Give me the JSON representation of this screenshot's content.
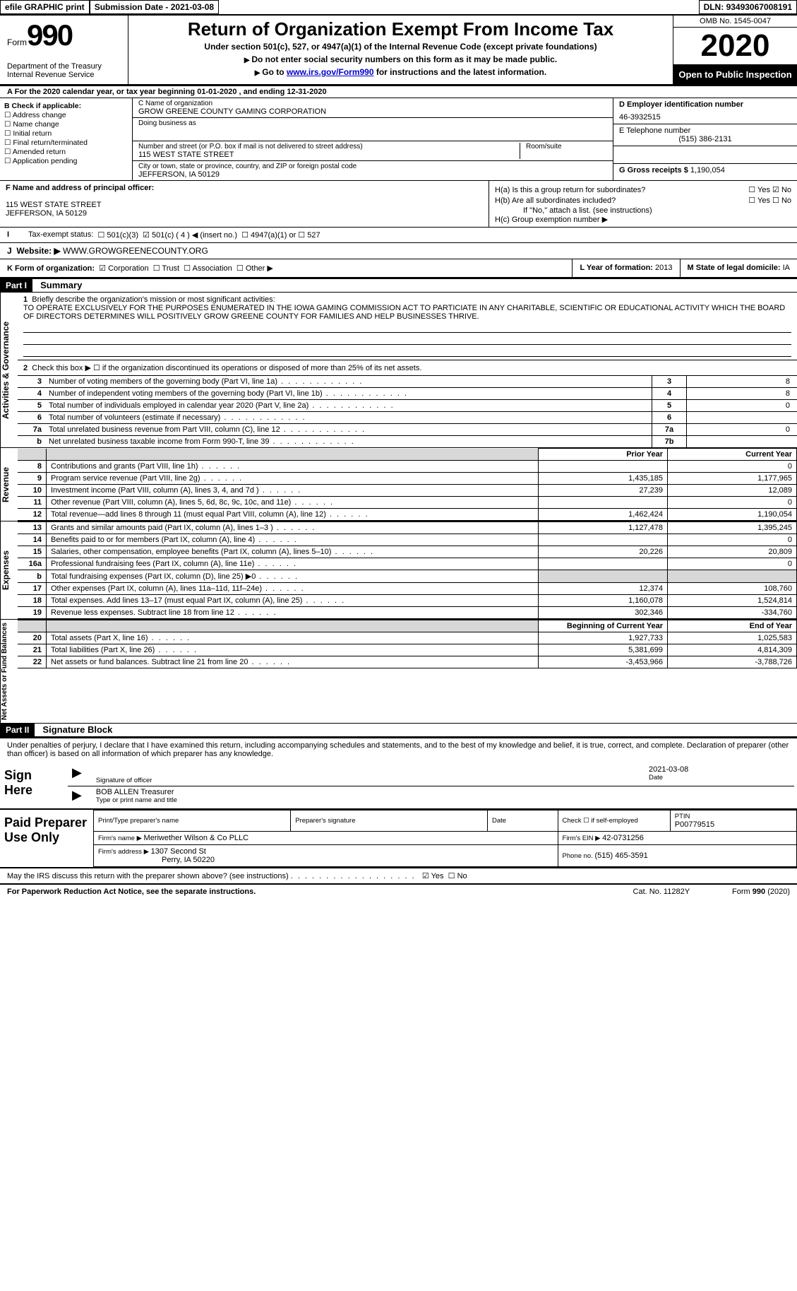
{
  "top": {
    "efile": "efile GRAPHIC print",
    "subdate_lbl": "Submission Date - ",
    "subdate": "2021-03-08",
    "dln_lbl": "DLN: ",
    "dln": "93493067008191"
  },
  "header": {
    "form_word": "Form",
    "form_num": "990",
    "dept1": "Department of the Treasury",
    "dept2": "Internal Revenue Service",
    "title": "Return of Organization Exempt From Income Tax",
    "sub": "Under section 501(c), 527, or 4947(a)(1) of the Internal Revenue Code (except private foundations)",
    "instr1": "Do not enter social security numbers on this form as it may be made public.",
    "instr2a": "Go to ",
    "instr2_link": "www.irs.gov/Form990",
    "instr2b": " for instructions and the latest information.",
    "omb": "OMB No. 1545-0047",
    "year": "2020",
    "inspect": "Open to Public Inspection"
  },
  "line_a": "For the 2020 calendar year, or tax year beginning 01-01-2020   , and ending 12-31-2020",
  "section_b": {
    "heading": "B Check if applicable:",
    "items": [
      "Address change",
      "Name change",
      "Initial return",
      "Final return/terminated",
      "Amended return",
      "Application pending"
    ]
  },
  "section_c": {
    "name_lbl": "C Name of organization",
    "name": "GROW GREENE COUNTY GAMING CORPORATION",
    "dba_lbl": "Doing business as",
    "dba": "",
    "addr_lbl": "Number and street (or P.O. box if mail is not delivered to street address)",
    "room_lbl": "Room/suite",
    "addr": "115 WEST STATE STREET",
    "city_lbl": "City or town, state or province, country, and ZIP or foreign postal code",
    "city": "JEFFERSON, IA  50129"
  },
  "section_right": {
    "d_lbl": "D Employer identification number",
    "d_val": "46-3932515",
    "e_lbl": "E Telephone number",
    "e_val": "(515) 386-2131",
    "g_lbl": "G Gross receipts $ ",
    "g_val": "1,190,054"
  },
  "section_f": {
    "lbl": "F Name and address of principal officer:",
    "addr1": "115 WEST STATE STREET",
    "addr2": "JEFFERSON, IA  50129"
  },
  "section_h": {
    "a_lbl": "H(a)  Is this a group return for subordinates?",
    "b_lbl": "H(b)  Are all subordinates included?",
    "b_note": "If \"No,\" attach a list. (see instructions)",
    "c_lbl": "H(c)  Group exemption number ▶",
    "yes": "Yes",
    "no": "No"
  },
  "line_i": {
    "lbl": "Tax-exempt status:",
    "o1": "501(c)(3)",
    "o2": "501(c) ( 4 ) ◀ (insert no.)",
    "o3": "4947(a)(1) or",
    "o4": "527"
  },
  "line_j": {
    "lbl": "Website: ▶ ",
    "val": "WWW.GROWGREENECOUNTY.ORG"
  },
  "line_k": {
    "lbl": "K Form of organization:",
    "o1": "Corporation",
    "o2": "Trust",
    "o3": "Association",
    "o4": "Other ▶"
  },
  "line_l": {
    "lbl": "L Year of formation: ",
    "val": "2013"
  },
  "line_m": {
    "lbl": "M State of legal domicile: ",
    "val": "IA"
  },
  "part1": {
    "hdr": "Part I",
    "title": "Summary"
  },
  "mission": {
    "q1_ln": "1",
    "q1": "Briefly describe the organization's mission or most significant activities:",
    "q1_text": "TO OPERATE EXCLUSIVELY FOR THE PURPOSES ENUMERATED IN THE IOWA GAMING COMMISSION ACT TO PARTICIATE IN ANY CHARITABLE, SCIENTIFIC OR EDUCATIONAL ACTIVITY WHICH THE BOARD OF DIRECTORS DETERMINES WILL POSITIVELY GROW GREENE COUNTY FOR FAMILIES AND HELP BUSINESSES THRIVE.",
    "q2_ln": "2",
    "q2": "Check this box ▶ ☐  if the organization discontinued its operations or disposed of more than 25% of its net assets."
  },
  "gov_rows": [
    {
      "ln": "3",
      "desc": "Number of voting members of the governing body (Part VI, line 1a)",
      "box": "3",
      "val": "8"
    },
    {
      "ln": "4",
      "desc": "Number of independent voting members of the governing body (Part VI, line 1b)",
      "box": "4",
      "val": "8"
    },
    {
      "ln": "5",
      "desc": "Total number of individuals employed in calendar year 2020 (Part V, line 2a)",
      "box": "5",
      "val": "0"
    },
    {
      "ln": "6",
      "desc": "Total number of volunteers (estimate if necessary)",
      "box": "6",
      "val": ""
    },
    {
      "ln": "7a",
      "desc": "Total unrelated business revenue from Part VIII, column (C), line 12",
      "box": "7a",
      "val": "0"
    },
    {
      "ln": "b",
      "desc": "Net unrelated business taxable income from Form 990-T, line 39",
      "box": "7b",
      "val": ""
    }
  ],
  "fin_headers": {
    "left": "",
    "prior": "Prior Year",
    "current": "Current Year"
  },
  "revenue_rows": [
    {
      "ln": "8",
      "desc": "Contributions and grants (Part VIII, line 1h)",
      "prior": "",
      "curr": "0"
    },
    {
      "ln": "9",
      "desc": "Program service revenue (Part VIII, line 2g)",
      "prior": "1,435,185",
      "curr": "1,177,965"
    },
    {
      "ln": "10",
      "desc": "Investment income (Part VIII, column (A), lines 3, 4, and 7d )",
      "prior": "27,239",
      "curr": "12,089"
    },
    {
      "ln": "11",
      "desc": "Other revenue (Part VIII, column (A), lines 5, 6d, 8c, 9c, 10c, and 11e)",
      "prior": "",
      "curr": "0"
    },
    {
      "ln": "12",
      "desc": "Total revenue—add lines 8 through 11 (must equal Part VIII, column (A), line 12)",
      "prior": "1,462,424",
      "curr": "1,190,054"
    }
  ],
  "expense_rows": [
    {
      "ln": "13",
      "desc": "Grants and similar amounts paid (Part IX, column (A), lines 1–3 )",
      "prior": "1,127,478",
      "curr": "1,395,245"
    },
    {
      "ln": "14",
      "desc": "Benefits paid to or for members (Part IX, column (A), line 4)",
      "prior": "",
      "curr": "0"
    },
    {
      "ln": "15",
      "desc": "Salaries, other compensation, employee benefits (Part IX, column (A), lines 5–10)",
      "prior": "20,226",
      "curr": "20,809"
    },
    {
      "ln": "16a",
      "desc": "Professional fundraising fees (Part IX, column (A), line 11e)",
      "prior": "",
      "curr": "0"
    },
    {
      "ln": "b",
      "desc": "Total fundraising expenses (Part IX, column (D), line 25) ▶0",
      "prior": "—shade—",
      "curr": "—shade—"
    },
    {
      "ln": "17",
      "desc": "Other expenses (Part IX, column (A), lines 11a–11d, 11f–24e)",
      "prior": "12,374",
      "curr": "108,760"
    },
    {
      "ln": "18",
      "desc": "Total expenses. Add lines 13–17 (must equal Part IX, column (A), line 25)",
      "prior": "1,160,078",
      "curr": "1,524,814"
    },
    {
      "ln": "19",
      "desc": "Revenue less expenses. Subtract line 18 from line 12",
      "prior": "302,346",
      "curr": "-334,760"
    }
  ],
  "net_headers": {
    "prior": "Beginning of Current Year",
    "current": "End of Year"
  },
  "net_rows": [
    {
      "ln": "20",
      "desc": "Total assets (Part X, line 16)",
      "prior": "1,927,733",
      "curr": "1,025,583"
    },
    {
      "ln": "21",
      "desc": "Total liabilities (Part X, line 26)",
      "prior": "5,381,699",
      "curr": "4,814,309"
    },
    {
      "ln": "22",
      "desc": "Net assets or fund balances. Subtract line 21 from line 20",
      "prior": "-3,453,966",
      "curr": "-3,788,726"
    }
  ],
  "vlabels": {
    "gov": "Activities & Governance",
    "rev": "Revenue",
    "exp": "Expenses",
    "net": "Net Assets or Fund Balances"
  },
  "part2": {
    "hdr": "Part II",
    "title": "Signature Block"
  },
  "sig": {
    "perjury": "Under penalties of perjury, I declare that I have examined this return, including accompanying schedules and statements, and to the best of my knowledge and belief, it is true, correct, and complete. Declaration of preparer (other than officer) is based on all information of which preparer has any knowledge.",
    "sign_here": "Sign Here",
    "sig_officer": "Signature of officer",
    "date_lbl": "Date",
    "date_val": "2021-03-08",
    "name": "BOB ALLEN  Treasurer",
    "name_lbl": "Type or print name and title"
  },
  "prep": {
    "label": "Paid Preparer Use Only",
    "h1": "Print/Type preparer's name",
    "h2": "Preparer's signature",
    "h3": "Date",
    "h4a": "Check ☐ if self-employed",
    "h4b": "PTIN",
    "ptin": "P00779515",
    "firm_lbl": "Firm's name   ▶ ",
    "firm": "Meriwether Wilson & Co PLLC",
    "ein_lbl": "Firm's EIN ▶ ",
    "ein": "42-0731256",
    "addr_lbl": "Firm's address ▶ ",
    "addr1": "1307 Second St",
    "addr2": "Perry, IA  50220",
    "phone_lbl": "Phone no. ",
    "phone": "(515) 465-3591"
  },
  "discuss": {
    "q": "May the IRS discuss this return with the preparer shown above? (see instructions)",
    "yes": "Yes",
    "no": "No"
  },
  "footer": {
    "left": "For Paperwork Reduction Act Notice, see the separate instructions.",
    "mid": "Cat. No. 11282Y",
    "right": "Form 990 (2020)"
  }
}
